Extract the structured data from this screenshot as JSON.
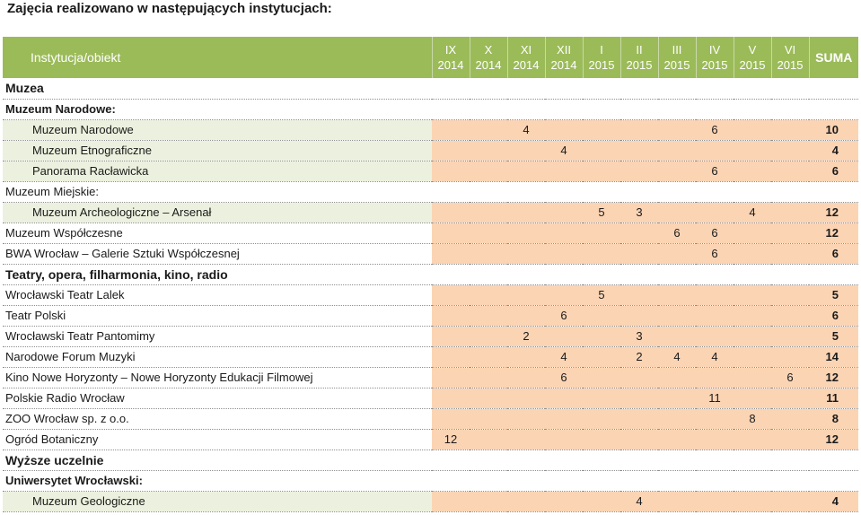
{
  "title": "Zajęcia realizowano w następujących instytucjach:",
  "header": {
    "institution": "Instytucja/obiekt",
    "months": [
      {
        "m": "IX",
        "y": "2014"
      },
      {
        "m": "X",
        "y": "2014"
      },
      {
        "m": "XI",
        "y": "2014"
      },
      {
        "m": "XII",
        "y": "2014"
      },
      {
        "m": "I",
        "y": "2015"
      },
      {
        "m": "II",
        "y": "2015"
      },
      {
        "m": "III",
        "y": "2015"
      },
      {
        "m": "IV",
        "y": "2015"
      },
      {
        "m": "V",
        "y": "2015"
      },
      {
        "m": "VI",
        "y": "2015"
      }
    ],
    "sum": "SUMA"
  },
  "rows": [
    {
      "kind": "section-top",
      "name": "Muzea"
    },
    {
      "kind": "group",
      "name": "Muzeum Narodowe:"
    },
    {
      "kind": "indent",
      "name": "Muzeum Narodowe",
      "values": [
        "",
        "",
        "4",
        "",
        "",
        "",
        "",
        "6",
        "",
        ""
      ],
      "sum": "10"
    },
    {
      "kind": "indent",
      "name": "Muzeum Etnograficzne",
      "values": [
        "",
        "",
        "",
        "4",
        "",
        "",
        "",
        "",
        "",
        ""
      ],
      "sum": "4"
    },
    {
      "kind": "indent",
      "name": "Panorama Racławicka",
      "values": [
        "",
        "",
        "",
        "",
        "",
        "",
        "",
        "6",
        "",
        ""
      ],
      "sum": "6"
    },
    {
      "kind": "group-plain",
      "name": "Muzeum Miejskie:"
    },
    {
      "kind": "indent",
      "name": "Muzeum Archeologiczne – Arsenał",
      "values": [
        "",
        "",
        "",
        "",
        "5",
        "3",
        "",
        "",
        "4",
        ""
      ],
      "sum": "12"
    },
    {
      "kind": "level",
      "name": "Muzeum Współczesne",
      "values": [
        "",
        "",
        "",
        "",
        "",
        "",
        "6",
        "6",
        "",
        ""
      ],
      "sum": "12"
    },
    {
      "kind": "level",
      "name": "BWA Wrocław – Galerie Sztuki Współczesnej",
      "values": [
        "",
        "",
        "",
        "",
        "",
        "",
        "",
        "6",
        "",
        ""
      ],
      "sum": "6"
    },
    {
      "kind": "section",
      "name": "Teatry, opera, filharmonia, kino, radio"
    },
    {
      "kind": "level",
      "name": "Wrocławski Teatr Lalek",
      "values": [
        "",
        "",
        "",
        "",
        "5",
        "",
        "",
        "",
        "",
        ""
      ],
      "sum": "5"
    },
    {
      "kind": "level",
      "name": "Teatr Polski",
      "values": [
        "",
        "",
        "",
        "6",
        "",
        "",
        "",
        "",
        "",
        ""
      ],
      "sum": "6"
    },
    {
      "kind": "level",
      "name": "Wrocławski Teatr Pantomimy",
      "values": [
        "",
        "",
        "2",
        "",
        "",
        "3",
        "",
        "",
        "",
        ""
      ],
      "sum": "5"
    },
    {
      "kind": "level",
      "name": "Narodowe Forum Muzyki",
      "values": [
        "",
        "",
        "",
        "4",
        "",
        "2",
        "4",
        "4",
        "",
        ""
      ],
      "sum": "14"
    },
    {
      "kind": "level",
      "name": "Kino Nowe Horyzonty – Nowe Horyzonty Edukacji Filmowej",
      "values": [
        "",
        "",
        "",
        "6",
        "",
        "",
        "",
        "",
        "",
        "6"
      ],
      "sum": "12"
    },
    {
      "kind": "level",
      "name": "Polskie Radio Wrocław",
      "values": [
        "",
        "",
        "",
        "",
        "",
        "",
        "",
        "11",
        "",
        ""
      ],
      "sum": "11"
    },
    {
      "kind": "level",
      "name": "ZOO Wrocław sp. z o.o.",
      "values": [
        "",
        "",
        "",
        "",
        "",
        "",
        "",
        "",
        "8",
        ""
      ],
      "sum": "8"
    },
    {
      "kind": "level",
      "name": "Ogród Botaniczny",
      "values": [
        "12",
        "",
        "",
        "",
        "",
        "",
        "",
        "",
        "",
        ""
      ],
      "sum": "12"
    },
    {
      "kind": "section",
      "name": "Wyższe uczelnie"
    },
    {
      "kind": "group",
      "name": "Uniwersytet Wrocławski:"
    },
    {
      "kind": "indent",
      "name": "Muzeum Geologiczne",
      "values": [
        "",
        "",
        "",
        "",
        "",
        "4",
        "",
        "",
        "",
        ""
      ],
      "sum": "4"
    }
  ]
}
